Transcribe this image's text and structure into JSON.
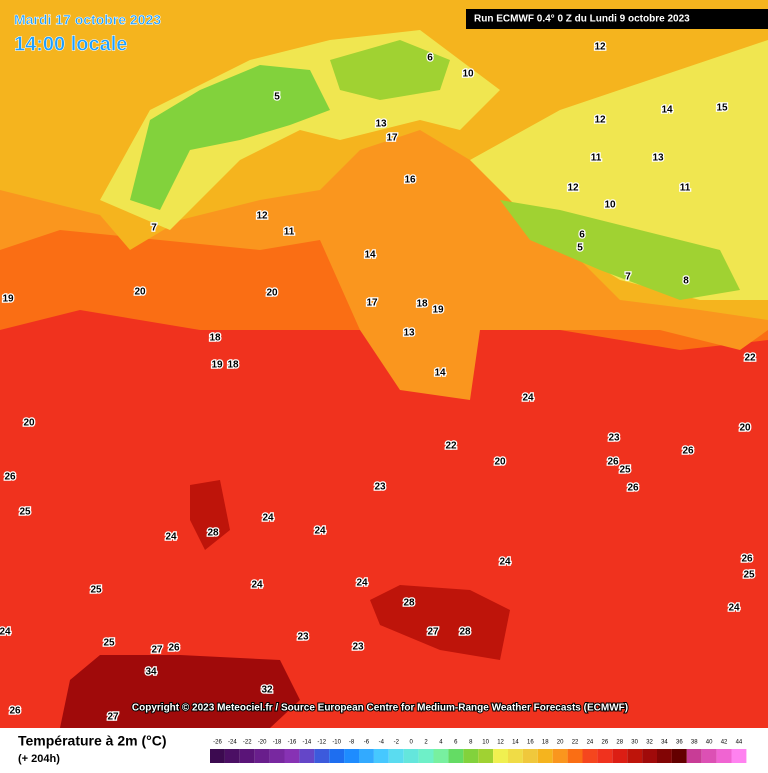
{
  "header": {
    "date": "Mardi 17 octobre 2023",
    "time": "14:00 locale",
    "run": "Run ECMWF 0.4° 0 Z du Lundi 9 octobre 2023"
  },
  "copyright": "Copyright © 2023 Meteociel.fr / Source European Centre for Medium-Range Weather Forecasts (ECMWF)",
  "legend": {
    "title": "Température à 2m (°C)",
    "lead": "(+ 204h)",
    "ticks": [
      -26,
      -24,
      -22,
      -20,
      -18,
      -16,
      -14,
      -12,
      -10,
      -8,
      -6,
      -4,
      -2,
      0,
      2,
      4,
      6,
      8,
      10,
      12,
      14,
      16,
      18,
      20,
      22,
      24,
      26,
      28,
      30,
      32,
      34,
      36,
      38,
      40,
      42,
      44
    ],
    "colors": [
      "#3c0a50",
      "#4b0f64",
      "#5a1478",
      "#691e8c",
      "#7828a0",
      "#8732b4",
      "#6446c8",
      "#3c5adc",
      "#1e6ef0",
      "#1e8cff",
      "#32aaff",
      "#46c8ff",
      "#5adcf0",
      "#64e6dc",
      "#6ef0c8",
      "#78f0a0",
      "#64dc64",
      "#82d23c",
      "#a0d232",
      "#f0f050",
      "#f0dc46",
      "#f0c83c",
      "#f5b41e",
      "#fa961e",
      "#fa6e14",
      "#f5461e",
      "#f0321e",
      "#dc1e14",
      "#be140a",
      "#a00a0a",
      "#820505",
      "#640000",
      "#c83c96",
      "#dc50b4",
      "#f064d2",
      "#ff82f0"
    ]
  },
  "map_labels": [
    12,
    15,
    14,
    13,
    11,
    12,
    11,
    10,
    7,
    8,
    5,
    6,
    13,
    17,
    16,
    12,
    11,
    14,
    17,
    18,
    19,
    13,
    14,
    20,
    20,
    19,
    18,
    19,
    18,
    20,
    26,
    25,
    22,
    24,
    23,
    26,
    26,
    25,
    26,
    20,
    23,
    24,
    24,
    24,
    28,
    24,
    24,
    24,
    25,
    28,
    28,
    27,
    23,
    23,
    24,
    25,
    27,
    26,
    34,
    32,
    27,
    26,
    24,
    25,
    26,
    22,
    20,
    7,
    5,
    6,
    10,
    12
  ]
}
